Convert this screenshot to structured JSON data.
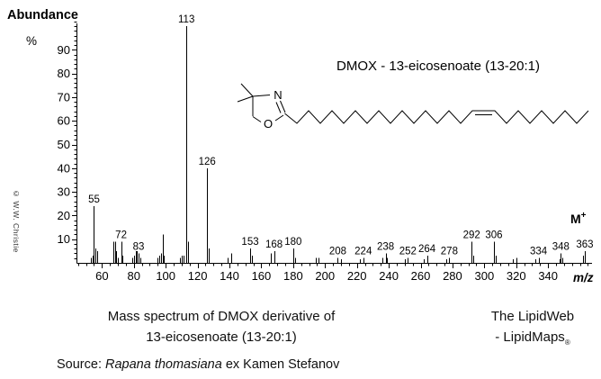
{
  "watermark": "© W.W. Christie",
  "annotation": {
    "title": "DMOX - 13-eicosenoate (13-20:1)",
    "color": "#1010EE"
  },
  "structure": {
    "nitrogen": "N",
    "oxygen": "O"
  },
  "chart_data": {
    "type": "bar",
    "subtype": "mass-spectrum",
    "title": "DMOX - 13-eicosenoate (13-20:1)",
    "xlabel": "m/z",
    "ylabel_title": "Abundance",
    "ylabel_unit": "%",
    "molecular_ion": "M",
    "molecular_ion_charge": "+",
    "xlim": [
      44,
      367
    ],
    "ylim": [
      0,
      104
    ],
    "grid": false,
    "x_ticks": [
      60,
      80,
      100,
      120,
      140,
      160,
      180,
      200,
      220,
      240,
      260,
      280,
      300,
      320,
      340
    ],
    "y_ticks": [
      10,
      20,
      30,
      40,
      50,
      60,
      70,
      80,
      90
    ],
    "x_minor_step": 5,
    "y_minor_step": 2,
    "labeled_peaks": [
      55,
      72,
      83,
      113,
      126,
      153,
      168,
      180,
      208,
      224,
      238,
      252,
      264,
      278,
      292,
      306,
      334,
      348,
      363
    ],
    "peaks": [
      [
        53,
        2
      ],
      [
        54,
        3
      ],
      [
        55,
        24
      ],
      [
        56,
        6
      ],
      [
        57,
        5
      ],
      [
        67,
        9
      ],
      [
        68,
        9
      ],
      [
        69,
        5
      ],
      [
        70,
        2
      ],
      [
        72,
        9
      ],
      [
        73,
        3
      ],
      [
        79,
        2
      ],
      [
        80,
        3
      ],
      [
        81,
        5
      ],
      [
        82,
        5
      ],
      [
        83,
        4
      ],
      [
        84,
        2
      ],
      [
        95,
        2
      ],
      [
        96,
        3
      ],
      [
        97,
        4
      ],
      [
        98,
        12
      ],
      [
        99,
        3
      ],
      [
        109,
        2
      ],
      [
        110,
        3
      ],
      [
        111,
        3
      ],
      [
        113,
        100
      ],
      [
        114,
        9
      ],
      [
        126,
        40
      ],
      [
        127,
        6
      ],
      [
        139,
        2
      ],
      [
        141,
        4
      ],
      [
        153,
        6
      ],
      [
        154,
        3
      ],
      [
        166,
        4
      ],
      [
        168,
        5
      ],
      [
        180,
        6
      ],
      [
        181,
        2
      ],
      [
        194,
        2
      ],
      [
        196,
        2
      ],
      [
        208,
        2
      ],
      [
        210,
        1.5
      ],
      [
        222,
        1.5
      ],
      [
        224,
        2
      ],
      [
        236,
        2
      ],
      [
        238,
        4
      ],
      [
        239,
        2
      ],
      [
        250,
        1.5
      ],
      [
        252,
        2
      ],
      [
        262,
        1.5
      ],
      [
        264,
        3
      ],
      [
        276,
        1.5
      ],
      [
        278,
        2
      ],
      [
        292,
        9
      ],
      [
        293,
        3
      ],
      [
        306,
        9
      ],
      [
        307,
        3
      ],
      [
        318,
        1.5
      ],
      [
        320,
        2
      ],
      [
        332,
        1.5
      ],
      [
        334,
        2
      ],
      [
        347,
        1.5
      ],
      [
        348,
        4
      ],
      [
        349,
        2
      ],
      [
        362,
        3
      ],
      [
        363,
        5
      ]
    ]
  },
  "captions": {
    "caption_line1": "Mass spectrum of DMOX derivative of",
    "caption_line2": "13-eicosenoate (13-20:1)",
    "brand_line1": "The LipidWeb",
    "brand_line2": "- LipidMaps",
    "brand_reg": "®",
    "source_prefix": "Source: ",
    "source_species": "Rapana thomasiana",
    "source_suffix": " ex Kamen Stefanov"
  }
}
